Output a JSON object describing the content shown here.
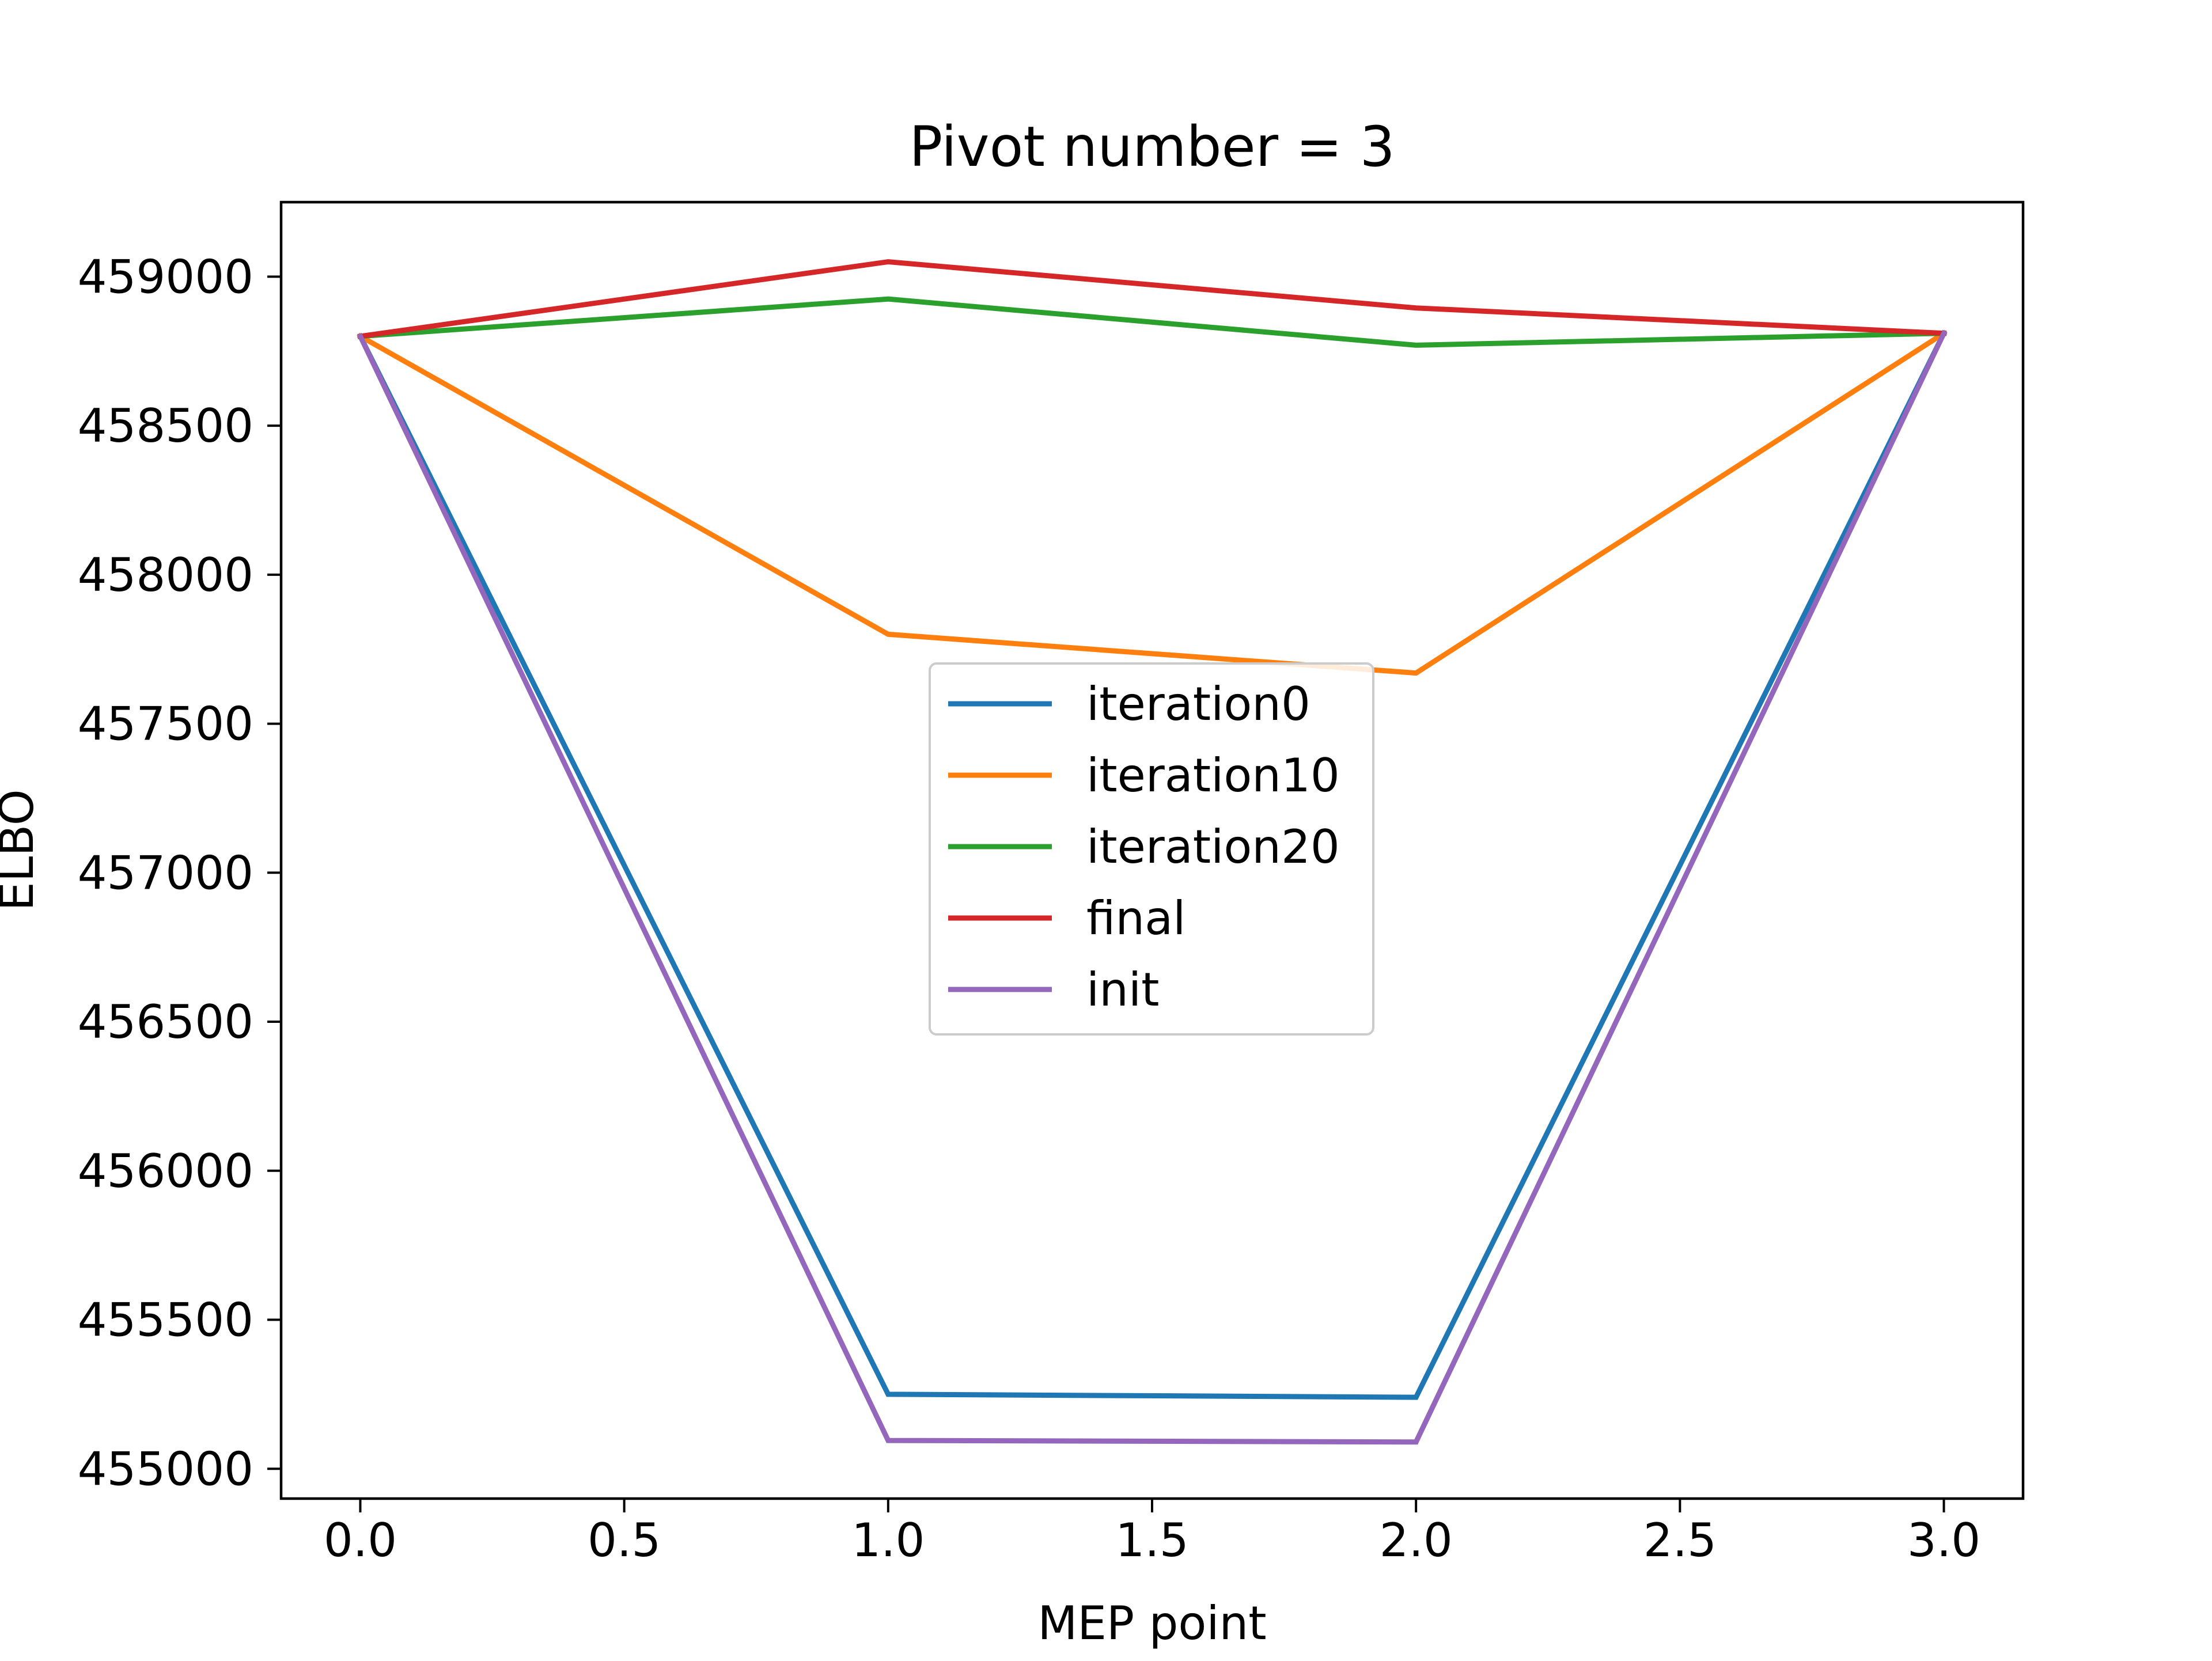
{
  "chart_data": {
    "type": "line",
    "title": "Pivot number = 3",
    "xlabel": "MEP point",
    "ylabel": "ELBO",
    "x": [
      0,
      1,
      2,
      3
    ],
    "xlim": [
      -0.15,
      3.15
    ],
    "ylim": [
      454900,
      459250
    ],
    "xticks": [
      0.0,
      0.5,
      1.0,
      1.5,
      2.0,
      2.5,
      3.0
    ],
    "xtick_labels": [
      "0.0",
      "0.5",
      "1.0",
      "1.5",
      "2.0",
      "2.5",
      "3.0"
    ],
    "yticks": [
      455000,
      455500,
      456000,
      456500,
      457000,
      457500,
      458000,
      458500,
      459000
    ],
    "ytick_labels": [
      "455000",
      "455500",
      "456000",
      "456500",
      "457000",
      "457500",
      "458000",
      "458500",
      "459000"
    ],
    "grid": false,
    "legend_position": "center",
    "series": [
      {
        "name": "iteration0",
        "color": "#1f77b4",
        "values": [
          458800,
          455250,
          455240,
          458810
        ]
      },
      {
        "name": "iteration10",
        "color": "#ff7f0e",
        "values": [
          458800,
          457800,
          457670,
          458810
        ]
      },
      {
        "name": "iteration20",
        "color": "#2ca02c",
        "values": [
          458800,
          458925,
          458770,
          458810
        ]
      },
      {
        "name": "final",
        "color": "#d62728",
        "values": [
          458800,
          459050,
          458895,
          458810
        ]
      },
      {
        "name": "init",
        "color": "#9467bd",
        "values": [
          458800,
          455095,
          455090,
          458810
        ]
      }
    ]
  }
}
